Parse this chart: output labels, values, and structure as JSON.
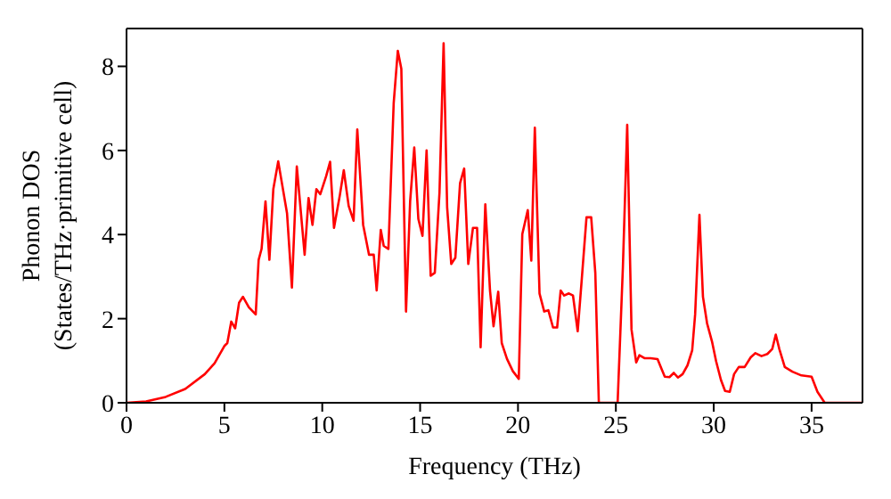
{
  "chart_data": {
    "type": "line",
    "xlabel": "Frequency (THz)",
    "ylabel": "Phonon DOS\n(States/THz·primitive cell)",
    "xlim": [
      0,
      37.6
    ],
    "ylim": [
      0,
      8.9
    ],
    "xticks": [
      0,
      5,
      10,
      15,
      20,
      25,
      30,
      35
    ],
    "yticks": [
      0,
      2,
      4,
      6,
      8
    ],
    "grid": false,
    "legend": false,
    "marker": "none",
    "line_style": "solid",
    "series": [
      {
        "color": "#ff0000",
        "x": [
          0,
          1,
          2,
          3,
          4,
          4.5,
          5,
          5.15,
          5.35,
          5.55,
          5.75,
          5.95,
          6.25,
          6.6,
          6.75,
          6.9,
          7.1,
          7.3,
          7.5,
          7.75,
          8.2,
          8.45,
          8.7,
          9.1,
          9.3,
          9.5,
          9.7,
          9.9,
          10.2,
          10.4,
          10.6,
          10.9,
          11.1,
          11.35,
          11.6,
          11.79,
          12.09,
          12.39,
          12.63,
          12.78,
          12.99,
          13.14,
          13.38,
          13.65,
          13.86,
          14.04,
          14.28,
          14.49,
          14.7,
          14.91,
          15.12,
          15.33,
          15.54,
          15.75,
          15.99,
          16.2,
          16.38,
          16.59,
          16.8,
          17.04,
          17.25,
          17.46,
          17.7,
          17.91,
          18.09,
          18.33,
          18.57,
          18.75,
          18.99,
          19.17,
          19.44,
          19.74,
          20.04,
          20.22,
          20.5,
          20.68,
          20.86,
          21.1,
          21.34,
          21.55,
          21.79,
          22.0,
          22.18,
          22.36,
          22.6,
          22.81,
          23.05,
          23.26,
          23.5,
          23.74,
          23.95,
          24.13,
          25.09,
          25.36,
          25.58,
          25.8,
          26.04,
          26.2,
          26.46,
          26.77,
          27.13,
          27.32,
          27.5,
          27.74,
          27.96,
          28.17,
          28.41,
          28.66,
          28.9,
          29.05,
          29.27,
          29.45,
          29.66,
          29.91,
          30.12,
          30.37,
          30.58,
          30.82,
          31.04,
          31.28,
          31.58,
          31.89,
          32.13,
          32.44,
          32.74,
          32.99,
          33.17,
          33.35,
          33.63,
          34.02,
          34.48,
          35.0,
          35.3,
          35.67,
          37.59
        ],
        "values": [
          0,
          0.03,
          0.14,
          0.33,
          0.68,
          0.94,
          1.35,
          1.42,
          1.93,
          1.77,
          2.38,
          2.52,
          2.27,
          2.1,
          3.4,
          3.66,
          4.79,
          3.4,
          5.08,
          5.74,
          4.51,
          2.74,
          5.62,
          3.52,
          4.87,
          4.23,
          5.08,
          4.96,
          5.39,
          5.73,
          4.16,
          4.94,
          5.53,
          4.68,
          4.33,
          6.5,
          4.23,
          3.52,
          3.52,
          2.67,
          4.11,
          3.73,
          3.66,
          7.13,
          8.37,
          7.94,
          2.17,
          4.79,
          6.07,
          4.37,
          3.97,
          6.0,
          3.02,
          3.09,
          5.0,
          8.55,
          4.65,
          3.3,
          3.45,
          5.22,
          5.57,
          3.3,
          4.16,
          4.16,
          1.32,
          4.72,
          2.67,
          1.82,
          2.64,
          1.42,
          1.04,
          0.75,
          0.57,
          4.01,
          4.58,
          3.38,
          6.54,
          2.6,
          2.17,
          2.2,
          1.79,
          1.79,
          2.67,
          2.55,
          2.6,
          2.55,
          1.7,
          2.95,
          4.41,
          4.41,
          3.09,
          0,
          0,
          3.23,
          6.61,
          1.74,
          0.96,
          1.13,
          1.06,
          1.06,
          1.04,
          0.82,
          0.62,
          0.61,
          0.71,
          0.6,
          0.68,
          0.89,
          1.25,
          2.1,
          4.47,
          2.52,
          1.89,
          1.46,
          0.99,
          0.54,
          0.28,
          0.26,
          0.68,
          0.85,
          0.85,
          1.08,
          1.18,
          1.11,
          1.16,
          1.28,
          1.62,
          1.28,
          0.85,
          0.74,
          0.65,
          0.62,
          0.26,
          0,
          0
        ]
      }
    ]
  }
}
